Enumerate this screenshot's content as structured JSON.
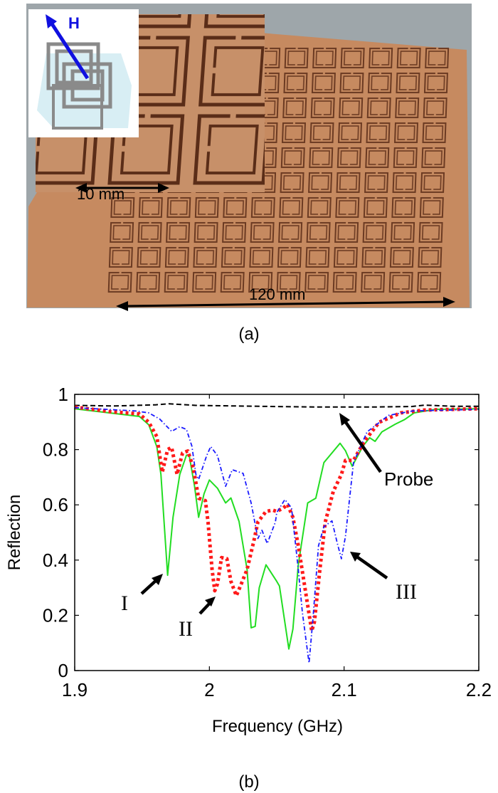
{
  "panel_a": {
    "caption": "(a)",
    "inset_field_label": "H",
    "scale_small": "10 mm",
    "scale_large": "120 mm",
    "colors": {
      "field_arrow": "#1010e0",
      "board": "#c68a60",
      "trace": "#6b3a22",
      "background": "#9ea6aa"
    }
  },
  "panel_b": {
    "caption": "(b)"
  },
  "chart_data": {
    "type": "line",
    "title": "",
    "xlabel": "Frequency (GHz)",
    "ylabel": "Reflection",
    "xlim": [
      1.9,
      2.2
    ],
    "ylim": [
      0,
      1
    ],
    "xticks": [
      "1.9",
      "2",
      "2.1",
      "2.2"
    ],
    "yticks": [
      "0",
      "0.2",
      "0.4",
      "0.6",
      "0.8",
      "1"
    ],
    "grid": false,
    "legend": "none",
    "series": [
      {
        "style": "dashed",
        "color": "#000000",
        "x": [
          1.9,
          1.93,
          1.96,
          1.97,
          1.99,
          2.02,
          2.05,
          2.08,
          2.12,
          2.15,
          2.16,
          2.18,
          2.2
        ],
        "y": [
          0.96,
          0.958,
          0.962,
          0.966,
          0.96,
          0.958,
          0.956,
          0.954,
          0.954,
          0.956,
          0.961,
          0.957,
          0.957
        ]
      },
      {
        "style": "solid",
        "color": "#22dd22",
        "x": [
          1.9,
          1.948,
          1.955,
          1.961,
          1.964,
          1.969,
          1.973,
          1.978,
          1.983,
          1.985,
          1.989,
          1.992,
          1.996,
          2.0,
          2.006,
          2.012,
          2.016,
          2.022,
          2.028,
          2.031,
          2.034,
          2.037,
          2.042,
          2.05,
          2.052,
          2.059,
          2.062,
          2.066,
          2.073,
          2.079,
          2.085,
          2.097,
          2.101,
          2.106,
          2.114,
          2.119,
          2.123,
          2.128,
          2.138,
          2.145,
          2.152,
          2.168,
          2.2
        ],
        "y": [
          0.948,
          0.92,
          0.89,
          0.81,
          0.71,
          0.345,
          0.555,
          0.71,
          0.78,
          0.78,
          0.667,
          0.555,
          0.64,
          0.69,
          0.66,
          0.607,
          0.625,
          0.54,
          0.366,
          0.155,
          0.16,
          0.3,
          0.383,
          0.323,
          0.306,
          0.078,
          0.15,
          0.383,
          0.607,
          0.624,
          0.753,
          0.823,
          0.796,
          0.74,
          0.813,
          0.843,
          0.83,
          0.864,
          0.892,
          0.909,
          0.933,
          0.946,
          0.948
        ]
      },
      {
        "style": "dotted",
        "color": "#ff1a1a",
        "x": [
          1.9,
          1.927,
          1.948,
          1.955,
          1.961,
          1.965,
          1.969,
          1.972,
          1.976,
          1.98,
          1.984,
          1.988,
          1.992,
          1.997,
          1.999,
          2.002,
          2.004,
          2.006,
          2.009,
          2.013,
          2.016,
          2.02,
          2.023,
          2.028,
          2.033,
          2.036,
          2.042,
          2.047,
          2.05,
          2.055,
          2.058,
          2.062,
          2.066,
          2.071,
          2.076,
          2.078,
          2.082,
          2.086,
          2.092,
          2.098,
          2.101,
          2.107,
          2.115,
          2.126,
          2.142,
          2.159,
          2.2
        ],
        "y": [
          0.954,
          0.937,
          0.929,
          0.899,
          0.847,
          0.718,
          0.8,
          0.808,
          0.71,
          0.787,
          0.795,
          0.735,
          0.624,
          0.615,
          0.538,
          0.366,
          0.289,
          0.314,
          0.409,
          0.405,
          0.323,
          0.271,
          0.306,
          0.366,
          0.469,
          0.538,
          0.576,
          0.581,
          0.576,
          0.589,
          0.602,
          0.555,
          0.452,
          0.297,
          0.143,
          0.177,
          0.366,
          0.538,
          0.649,
          0.71,
          0.761,
          0.761,
          0.83,
          0.899,
          0.933,
          0.943,
          0.948
        ]
      },
      {
        "style": "dashdot",
        "color": "#1a1aff",
        "x": [
          1.9,
          1.945,
          1.955,
          1.963,
          1.972,
          1.978,
          1.983,
          1.987,
          1.99,
          1.992,
          1.998,
          2.001,
          2.006,
          2.012,
          2.017,
          2.025,
          2.031,
          2.036,
          2.039,
          2.043,
          2.049,
          2.05,
          2.056,
          2.061,
          2.066,
          2.069,
          2.074,
          2.077,
          2.081,
          2.085,
          2.091,
          2.095,
          2.098,
          2.101,
          2.107,
          2.117,
          2.133,
          2.151,
          2.2
        ],
        "y": [
          0.952,
          0.94,
          0.933,
          0.911,
          0.866,
          0.883,
          0.873,
          0.813,
          0.71,
          0.692,
          0.778,
          0.811,
          0.778,
          0.667,
          0.727,
          0.714,
          0.607,
          0.478,
          0.508,
          0.46,
          0.538,
          0.572,
          0.619,
          0.589,
          0.366,
          0.211,
          0.027,
          0.194,
          0.452,
          0.521,
          0.542,
          0.46,
          0.405,
          0.486,
          0.753,
          0.864,
          0.924,
          0.94,
          0.946
        ]
      }
    ],
    "annotations": [
      {
        "text": "I",
        "x": 1.969,
        "y": 0.345
      },
      {
        "text": "II",
        "x": 2.004,
        "y": 0.289
      },
      {
        "text": "III",
        "x": 2.098,
        "y": 0.405
      },
      {
        "text": "Probe",
        "x": 2.09,
        "y": 0.93
      }
    ]
  }
}
